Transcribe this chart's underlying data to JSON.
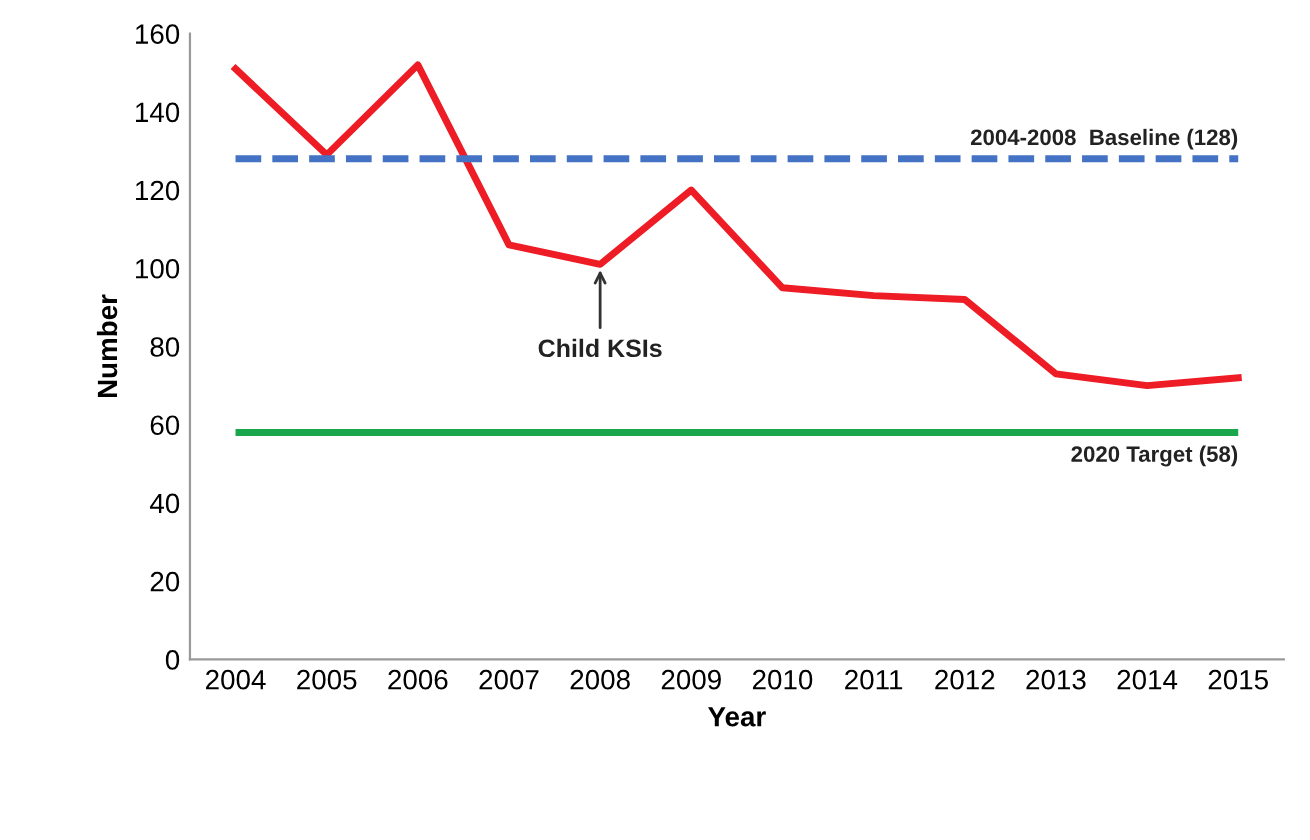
{
  "chart_data": {
    "type": "line",
    "xlabel": "Year",
    "ylabel": "Number",
    "categories": [
      "2004",
      "2005",
      "2006",
      "2007",
      "2008",
      "2009",
      "2010",
      "2011",
      "2012",
      "2013",
      "2014",
      "2015"
    ],
    "series": [
      {
        "color": "#ee1c25",
        "values": [
          151,
          129,
          152,
          106,
          101,
          120,
          95,
          93,
          92,
          73,
          70,
          72
        ]
      }
    ],
    "ylim": [
      0,
      160
    ],
    "yticks": [
      0,
      20,
      40,
      60,
      80,
      100,
      120,
      140,
      160
    ],
    "ref_lines": [
      {
        "axis": "y",
        "value": 128,
        "label": "2004-2008  Baseline (128)",
        "color": "#4472c4",
        "line_style": "dashed"
      },
      {
        "axis": "y",
        "value": 58,
        "label": "2020 Target (58)",
        "color": "#1aa64a",
        "line_style": "solid"
      }
    ],
    "annotations": [
      {
        "text": "Child KSIs",
        "x": "2008",
        "y": 101
      }
    ],
    "grid": false,
    "legend": false,
    "marker": "none",
    "line_style": "solid"
  }
}
